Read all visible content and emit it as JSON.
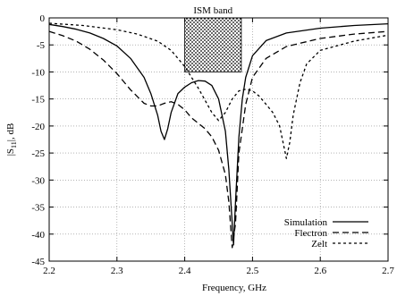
{
  "chart_data": {
    "type": "line",
    "title": "",
    "xlabel": "Frequency, GHz",
    "ylabel": "|S11|, dB",
    "ylabel_main": "|S",
    "ylabel_sub": "11",
    "ylabel_tail": "|, dB",
    "xlim": [
      2.2,
      2.7
    ],
    "ylim": [
      -45,
      0
    ],
    "x_ticks": [
      2.2,
      2.3,
      2.4,
      2.5,
      2.6,
      2.7
    ],
    "x_tick_labels": [
      "2.2",
      "2.3",
      "2.4",
      "2.5",
      "2.6",
      "2.7"
    ],
    "y_ticks": [
      0,
      -5,
      -10,
      -15,
      -20,
      -25,
      -30,
      -35,
      -40,
      -45
    ],
    "y_tick_labels": [
      "0",
      "-5",
      "-10",
      "-15",
      "-20",
      "-25",
      "-30",
      "-35",
      "-40",
      "-45"
    ],
    "grid": true,
    "legend_position": "bottom-right",
    "annotation": {
      "label": "ISM band",
      "x_range": [
        2.4,
        2.4835
      ],
      "y_range": [
        -10,
        0
      ]
    },
    "series": [
      {
        "name": "Simulation",
        "style": "solid",
        "x": [
          2.2,
          2.22,
          2.24,
          2.26,
          2.28,
          2.3,
          2.32,
          2.34,
          2.35,
          2.36,
          2.365,
          2.37,
          2.375,
          2.38,
          2.39,
          2.4,
          2.41,
          2.42,
          2.43,
          2.44,
          2.45,
          2.46,
          2.465,
          2.47,
          2.472,
          2.475,
          2.48,
          2.485,
          2.49,
          2.5,
          2.52,
          2.55,
          2.6,
          2.65,
          2.7
        ],
        "y": [
          -1.2,
          -1.6,
          -2.1,
          -2.8,
          -3.8,
          -5.2,
          -7.5,
          -11.0,
          -14.0,
          -18.0,
          -21.0,
          -22.5,
          -20.5,
          -17.5,
          -14.0,
          -12.8,
          -12.0,
          -11.6,
          -11.7,
          -12.5,
          -15.0,
          -21.0,
          -28.0,
          -38.0,
          -42.0,
          -34.0,
          -22.0,
          -15.0,
          -11.0,
          -7.0,
          -4.2,
          -2.8,
          -1.9,
          -1.4,
          -1.1
        ]
      },
      {
        "name": "Flectron",
        "style": "dashed",
        "x": [
          2.2,
          2.22,
          2.24,
          2.26,
          2.28,
          2.3,
          2.32,
          2.34,
          2.35,
          2.36,
          2.37,
          2.38,
          2.39,
          2.4,
          2.41,
          2.42,
          2.43,
          2.44,
          2.45,
          2.46,
          2.465,
          2.47,
          2.475,
          2.48,
          2.49,
          2.5,
          2.52,
          2.55,
          2.6,
          2.65,
          2.7
        ],
        "y": [
          -2.5,
          -3.3,
          -4.3,
          -5.8,
          -7.8,
          -10.3,
          -13.3,
          -15.8,
          -16.3,
          -16.3,
          -15.8,
          -15.5,
          -16.0,
          -17.0,
          -18.5,
          -19.5,
          -20.5,
          -22.0,
          -24.5,
          -29.0,
          -34.0,
          -42.5,
          -38.0,
          -25.0,
          -16.0,
          -11.0,
          -7.5,
          -5.3,
          -3.8,
          -3.0,
          -2.5
        ]
      },
      {
        "name": "Zelt",
        "style": "dotted",
        "x": [
          2.2,
          2.25,
          2.3,
          2.33,
          2.36,
          2.38,
          2.4,
          2.42,
          2.44,
          2.45,
          2.46,
          2.47,
          2.48,
          2.49,
          2.5,
          2.51,
          2.52,
          2.53,
          2.54,
          2.545,
          2.55,
          2.555,
          2.56,
          2.57,
          2.58,
          2.6,
          2.65,
          2.7
        ],
        "y": [
          -1.0,
          -1.4,
          -2.2,
          -3.0,
          -4.3,
          -6.0,
          -9.0,
          -13.0,
          -17.5,
          -19.0,
          -17.5,
          -15.0,
          -13.5,
          -13.2,
          -13.5,
          -14.5,
          -16.0,
          -17.5,
          -20.0,
          -23.0,
          -26.0,
          -23.0,
          -18.0,
          -12.0,
          -8.5,
          -6.0,
          -4.3,
          -3.2
        ]
      }
    ]
  }
}
